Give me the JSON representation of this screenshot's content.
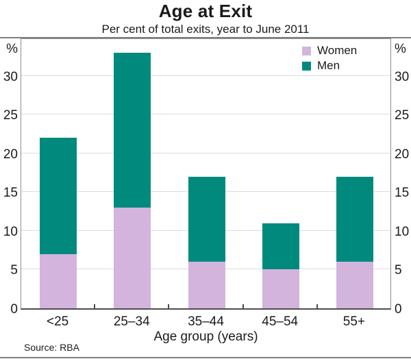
{
  "header": {
    "title": "Age at Exit",
    "subtitle": "Per cent of total exits, year to June 2011"
  },
  "chart_data": {
    "type": "bar",
    "stacked": true,
    "categories": [
      "<25",
      "25–34",
      "35–44",
      "45–54",
      "55+"
    ],
    "series": [
      {
        "name": "Women",
        "color": "#d3b4dc",
        "values": [
          7,
          13,
          6,
          5,
          6
        ]
      },
      {
        "name": "Men",
        "color": "#008a7d",
        "values": [
          15,
          20,
          11,
          6,
          11
        ]
      }
    ],
    "totals": [
      22,
      33,
      17,
      11,
      17
    ],
    "title": "Age at Exit",
    "subtitle": "Per cent of total exits, year to June 2011",
    "xlabel": "Age group (years)",
    "ylabel_left": "%",
    "ylabel_right": "%",
    "ylim": [
      0,
      35
    ],
    "yticks": [
      0,
      5,
      10,
      15,
      20,
      25,
      30
    ],
    "grid": true,
    "legend_position": "top-right",
    "legend": [
      "Women",
      "Men"
    ]
  },
  "footer": {
    "source": "Source: RBA"
  },
  "colors": {
    "women": "#d3b4dc",
    "men": "#008a7d",
    "grid": "#dcdcdc",
    "axis": "#8c8c8c",
    "baseline": "#4d4d4d",
    "rule": "#7f7f7f"
  }
}
